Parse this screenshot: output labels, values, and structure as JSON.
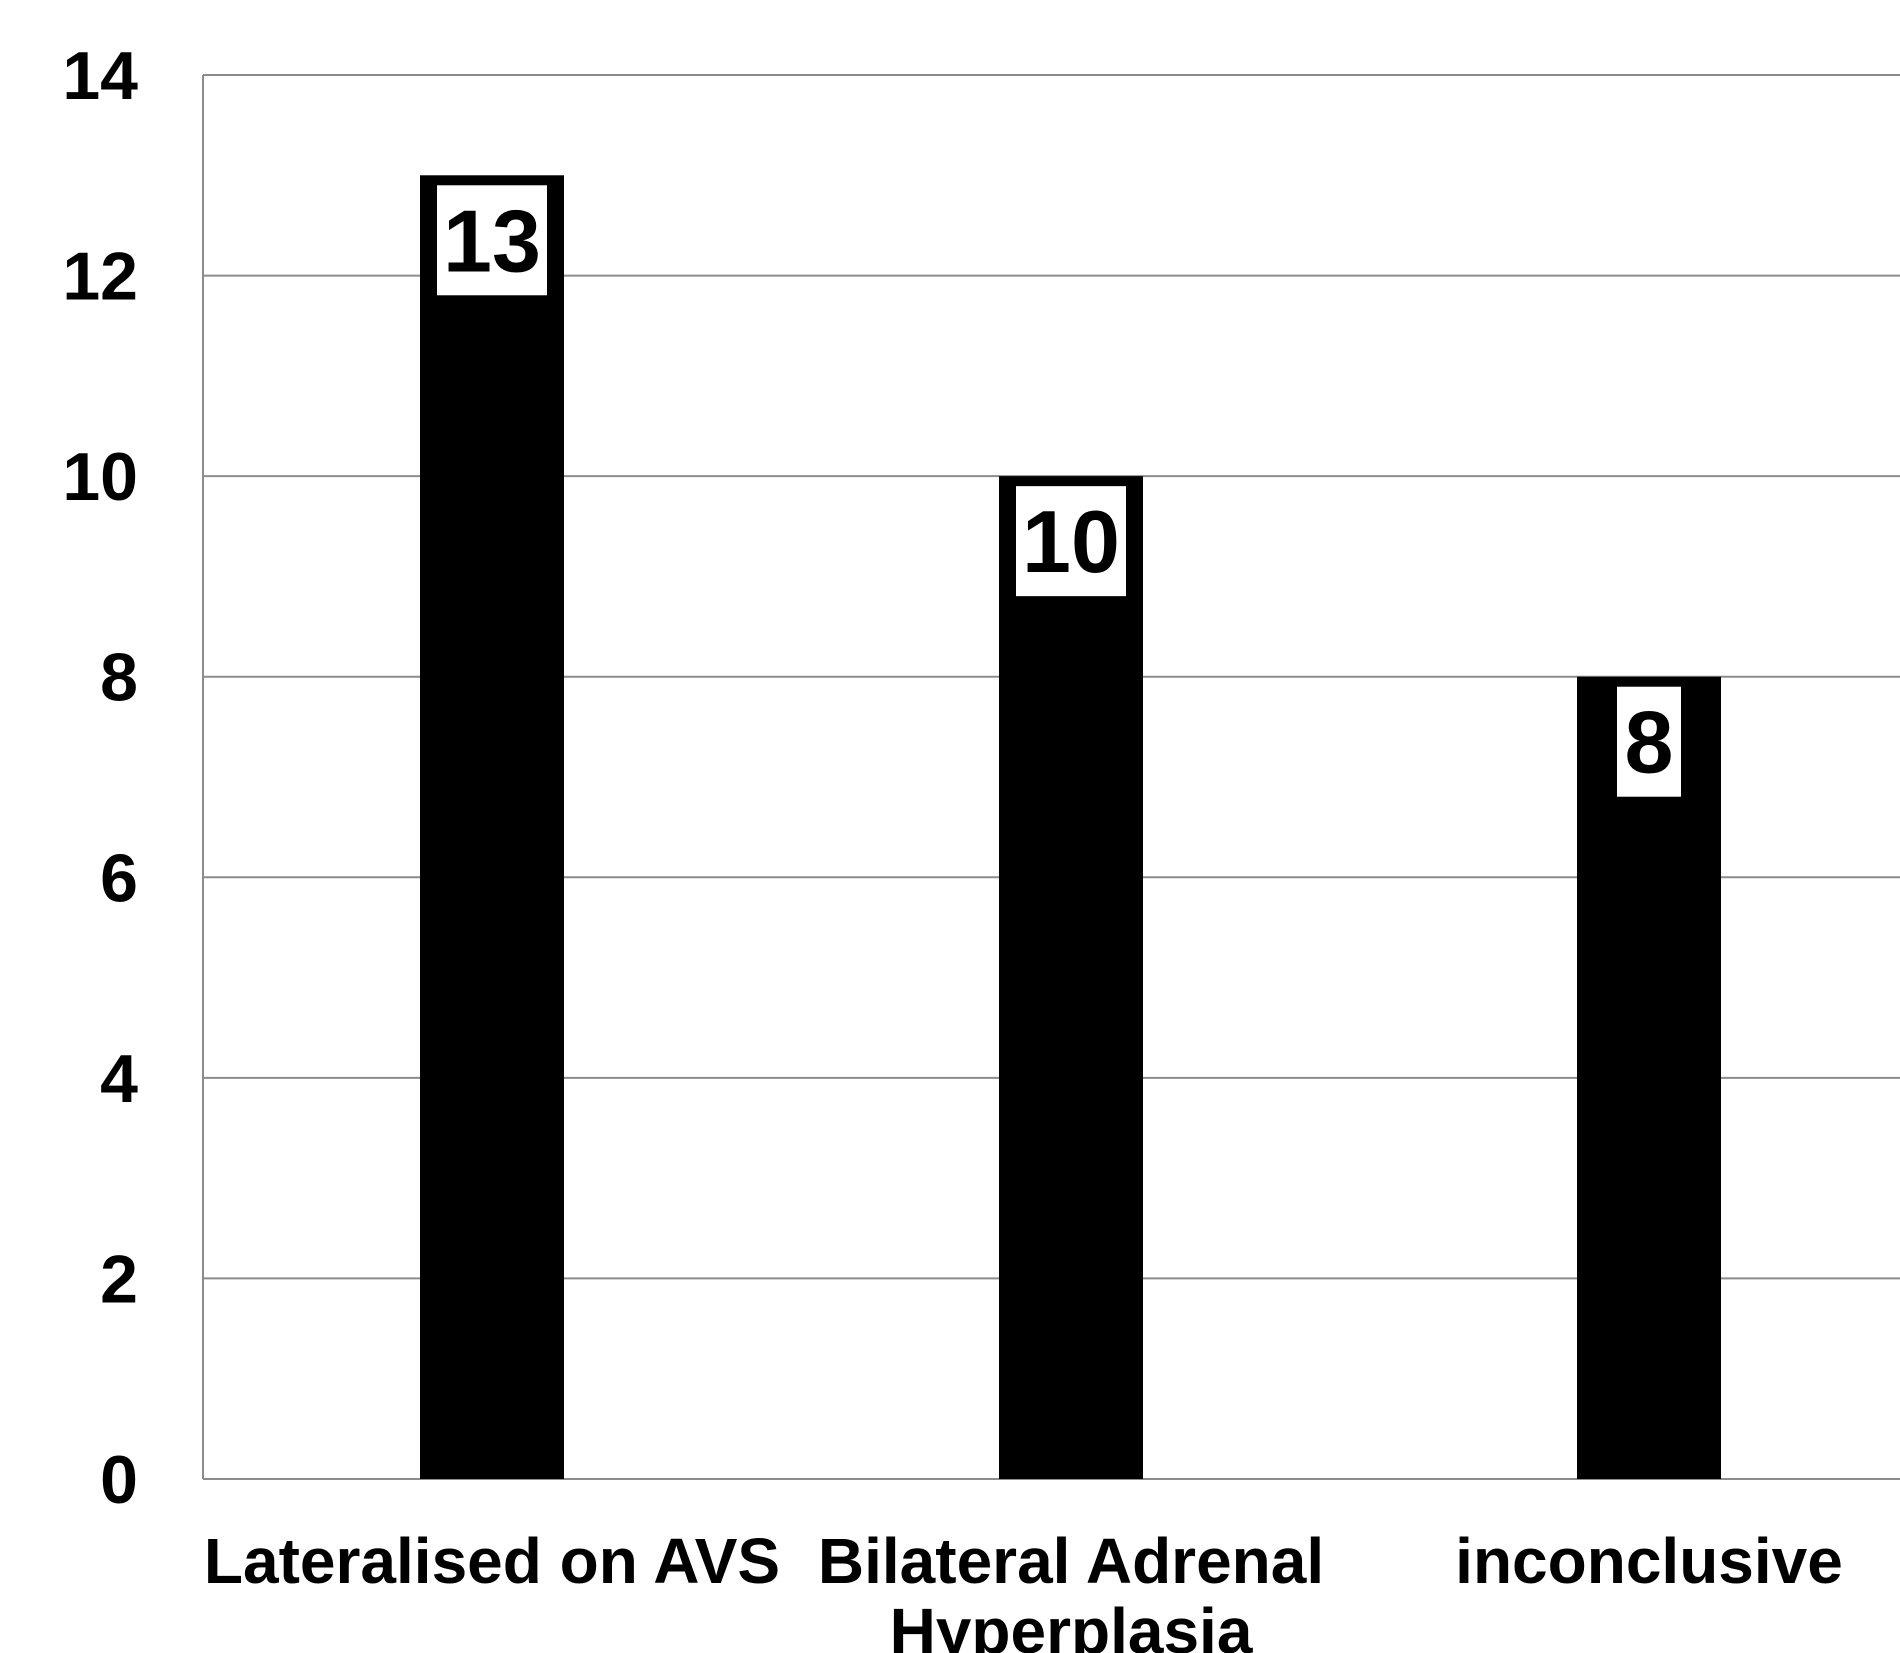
{
  "chart_data": {
    "type": "bar",
    "categories": [
      "Lateralised on AVS",
      "Bilateral Adrenal Hyperplasia",
      "inconclusive"
    ],
    "category_label_lines": [
      [
        "Lateralised on AVS"
      ],
      [
        "Bilateral Adrenal",
        "Hyperplasia"
      ],
      [
        "inconclusive"
      ]
    ],
    "values": [
      13,
      10,
      8
    ],
    "data_labels": [
      "13",
      "10",
      "8"
    ],
    "ylim": [
      0,
      14
    ],
    "yticks": [
      0,
      2,
      4,
      6,
      8,
      10,
      12,
      14
    ],
    "grid": true,
    "legend": "none",
    "bar_color": "#000000",
    "gridline_color": "#8c8c8c",
    "label_box_color": "#ffffff"
  }
}
